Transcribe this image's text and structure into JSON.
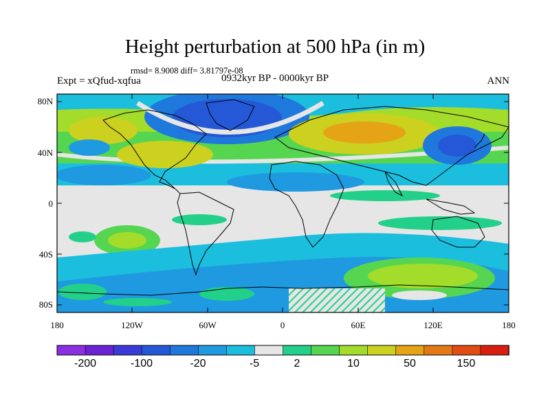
{
  "title": "Height perturbation at 500 hPa (in m)",
  "stats": "rmsd= 8.9008  diff= 3.81797e-08",
  "experiment": "Expt = xQfud-xqfua",
  "period": "0932kyr BP - 0000kyr BP",
  "season": "ANN",
  "lat_labels": [
    "80N",
    "40N",
    "0",
    "40S",
    "80S"
  ],
  "lon_labels": [
    "180",
    "120W",
    "60W",
    "0",
    "60E",
    "120E",
    "180"
  ],
  "colorbar": {
    "labels": [
      "-200",
      "-100",
      "-20",
      "-5",
      "2",
      "10",
      "50",
      "150"
    ],
    "colors": [
      "#8b2fe0",
      "#6a22d4",
      "#3a3ad8",
      "#2458d6",
      "#1f78dc",
      "#1f9ae0",
      "#1cbede",
      "#e6e6e6",
      "#22d08a",
      "#56d650",
      "#a3dc2a",
      "#ccd01f",
      "#e4a416",
      "#e47816",
      "#e04c14",
      "#d81e10"
    ]
  },
  "colors": {
    "strong_negative": "#2458d6",
    "negative": "#1f78dc",
    "weak_negative": "#1f9ae0",
    "near_zero": "#1cbede",
    "neutral": "#e6e6e6",
    "weak_positive": "#22d08a",
    "positive": "#56d650",
    "moderate_positive": "#a3dc2a",
    "strong_positive": "#ccd01f",
    "very_strong_positive": "#e4a416"
  }
}
